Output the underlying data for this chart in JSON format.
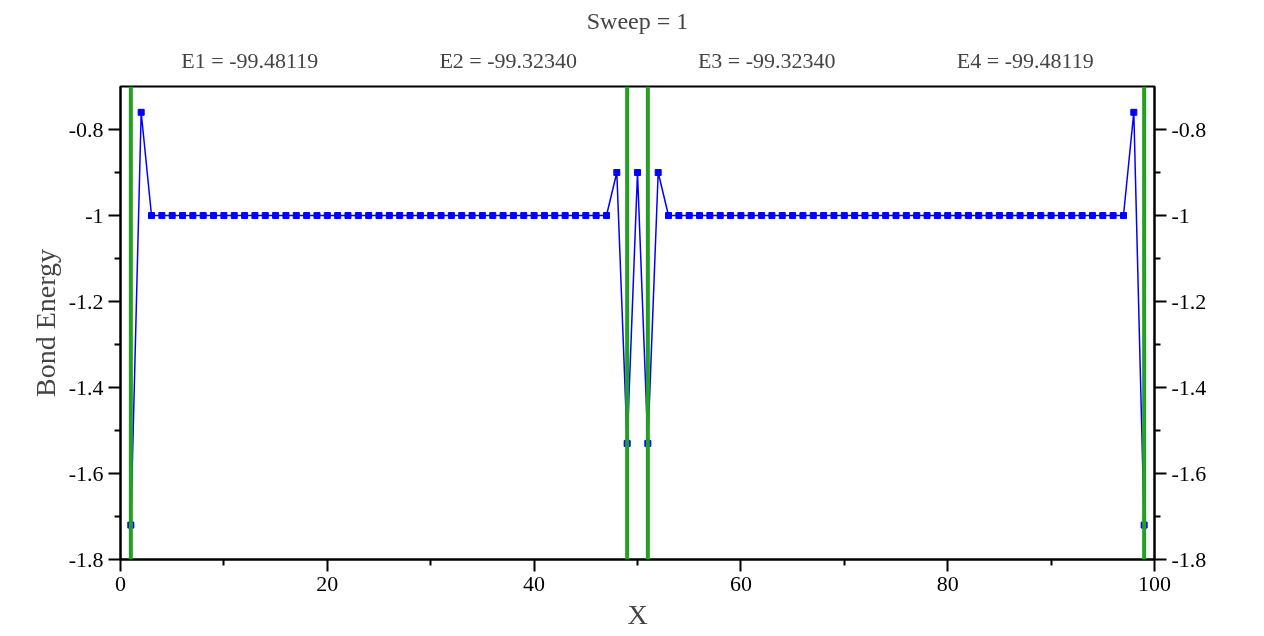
{
  "chart_data": {
    "type": "line",
    "title": "Sweep = 1",
    "annotations": [
      "E1 = -99.48119",
      "E2 = -99.32340",
      "E3 = -99.32340",
      "E4 = -99.48119"
    ],
    "xlabel": "X",
    "ylabel": "Bond Energy",
    "x": [
      1,
      2,
      3,
      4,
      5,
      6,
      7,
      8,
      9,
      10,
      11,
      12,
      13,
      14,
      15,
      16,
      17,
      18,
      19,
      20,
      21,
      22,
      23,
      24,
      25,
      26,
      27,
      28,
      29,
      30,
      31,
      32,
      33,
      34,
      35,
      36,
      37,
      38,
      39,
      40,
      41,
      42,
      43,
      44,
      45,
      46,
      47,
      48,
      49,
      50,
      51,
      52,
      53,
      54,
      55,
      56,
      57,
      58,
      59,
      60,
      61,
      62,
      63,
      64,
      65,
      66,
      67,
      68,
      69,
      70,
      71,
      72,
      73,
      74,
      75,
      76,
      77,
      78,
      79,
      80,
      81,
      82,
      83,
      84,
      85,
      86,
      87,
      88,
      89,
      90,
      91,
      92,
      93,
      94,
      95,
      96,
      97,
      98,
      99
    ],
    "series": [
      {
        "color": "#0000ff",
        "values": [
          -1.72,
          -0.76,
          -1,
          -1,
          -1,
          -1,
          -1,
          -1,
          -1,
          -1,
          -1,
          -1,
          -1,
          -1,
          -1,
          -1,
          -1,
          -1,
          -1,
          -1,
          -1,
          -1,
          -1,
          -1,
          -1,
          -1,
          -1,
          -1,
          -1,
          -1,
          -1,
          -1,
          -1,
          -1,
          -1,
          -1,
          -1,
          -1,
          -1,
          -1,
          -1,
          -1,
          -1,
          -1,
          -1,
          -1,
          -1,
          -0.9,
          -1.53,
          -0.9,
          -1.53,
          -0.9,
          -1,
          -1,
          -1,
          -1,
          -1,
          -1,
          -1,
          -1,
          -1,
          -1,
          -1,
          -1,
          -1,
          -1,
          -1,
          -1,
          -1,
          -1,
          -1,
          -1,
          -1,
          -1,
          -1,
          -1,
          -1,
          -1,
          -1,
          -1,
          -1,
          -1,
          -1,
          -1,
          -1,
          -1,
          -1,
          -1,
          -1,
          -1,
          -1,
          -1,
          -1,
          -1,
          -1,
          -1,
          -1,
          -0.76,
          -1.72
        ]
      }
    ],
    "marker": "square",
    "line_style": "solid",
    "grid": false,
    "xlim": [
      0,
      100
    ],
    "xticks": [
      0,
      {
        "value": 10,
        "label": null
      },
      20,
      {
        "value": 30,
        "label": null
      },
      40,
      {
        "value": 50,
        "label": null
      },
      60,
      {
        "value": 70,
        "label": null
      },
      80,
      {
        "value": 90,
        "label": null
      },
      100
    ],
    "ylim": [
      -1.8,
      -0.7
    ],
    "yticks": [
      {
        "value": -1.8,
        "label": "-1.8"
      },
      {
        "value": -1.7,
        "label": null
      },
      {
        "value": -1.6,
        "label": "-1.6"
      },
      {
        "value": -1.5,
        "label": null
      },
      {
        "value": -1.4,
        "label": "-1.4"
      },
      {
        "value": -1.3,
        "label": null
      },
      {
        "value": -1.2,
        "label": "-1.2"
      },
      {
        "value": -1.1,
        "label": null
      },
      {
        "value": -1,
        "label": "-1"
      },
      {
        "value": -0.9,
        "label": null
      },
      {
        "value": -0.8,
        "label": "-0.8"
      }
    ],
    "y2lim": [
      -1.8,
      -0.7
    ],
    "y2ticks": [
      {
        "value": -1.8,
        "label": "-1.8"
      },
      {
        "value": -1.7,
        "label": null
      },
      {
        "value": -1.6,
        "label": "-1.6"
      },
      {
        "value": -1.5,
        "label": null
      },
      {
        "value": -1.4,
        "label": "-1.4"
      },
      {
        "value": -1.3,
        "label": null
      },
      {
        "value": -1.2,
        "label": "-1.2"
      },
      {
        "value": -1.1,
        "label": null
      },
      {
        "value": -1,
        "label": "-1"
      },
      {
        "value": -0.9,
        "label": null
      },
      {
        "value": -0.8,
        "label": "-0.8"
      }
    ],
    "ref_lines": [
      {
        "axis": "x",
        "value": 1,
        "color": "#22a022"
      },
      {
        "axis": "x",
        "value": 49,
        "color": "#22a022"
      },
      {
        "axis": "x",
        "value": 51,
        "color": "#22a022"
      },
      {
        "axis": "x",
        "value": 99,
        "color": "#22a022"
      }
    ]
  }
}
